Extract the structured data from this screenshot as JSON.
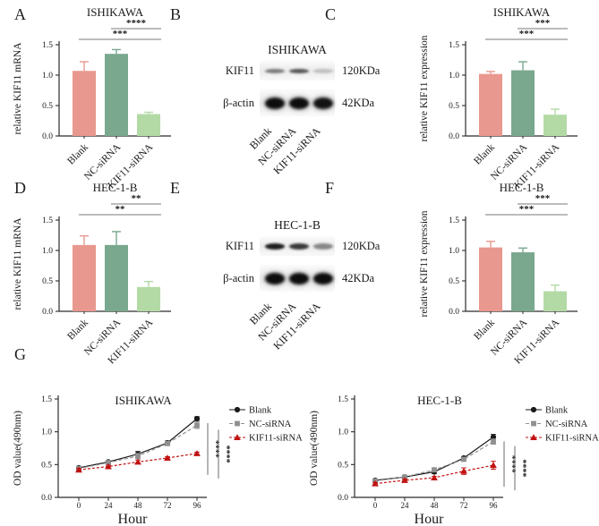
{
  "panel_letters": [
    "A",
    "B",
    "C",
    "D",
    "E",
    "F",
    "G"
  ],
  "groups": [
    "Blank",
    "NC-siRNA",
    "KIF11-siRNA"
  ],
  "colors": {
    "bar_blank": "#E8988E",
    "bar_nc": "#79A88E",
    "bar_kif11": "#B3DAA5",
    "line_blank": "#1A1A1A",
    "line_nc": "#909090",
    "line_kif11": "#C11212",
    "axis": "#2B2B2B",
    "sig_line": "#787878",
    "stars": "#111111"
  },
  "blots": {
    "B": {
      "title": "ISHIKAWA",
      "lanes": [
        "Blank",
        "NC-siRNA",
        "KIF11-siRNA"
      ],
      "rows": [
        {
          "protein": "KIF11",
          "size": "120KDa",
          "band_height": 5,
          "intensities": [
            0.5,
            0.68,
            0.2
          ]
        },
        {
          "protein": "β-actin",
          "size": "42KDa",
          "band_height": 13,
          "intensities": [
            1,
            1,
            0.97
          ]
        }
      ]
    },
    "E": {
      "title": "HEC-1-B",
      "lanes": [
        "Blank",
        "NC-siRNA",
        "KIF11-siRNA"
      ],
      "rows": [
        {
          "protein": "KIF11",
          "size": "120KDa",
          "band_height": 7,
          "intensities": [
            0.92,
            0.8,
            0.45
          ]
        },
        {
          "protein": "β-actin",
          "size": "42KDa",
          "band_height": 13,
          "intensities": [
            1,
            1,
            1
          ]
        }
      ]
    }
  },
  "chart_data": [
    {
      "id": "A",
      "type": "bar",
      "title": "ISHIKAWA",
      "ylabel": "relative KIF11 mRNA",
      "categories": [
        "Blank",
        "NC-siRNA",
        "KIF11-siRNA"
      ],
      "values": [
        1.07,
        1.35,
        0.36
      ],
      "errors": [
        0.15,
        0.07,
        0.03
      ],
      "ylim": [
        0,
        1.5
      ],
      "yticks": [
        0,
        0.5,
        1.0,
        1.5
      ],
      "significance": [
        {
          "from": 0,
          "to": 2,
          "stars": "***"
        },
        {
          "from": 1,
          "to": 2,
          "stars": "****"
        }
      ]
    },
    {
      "id": "C",
      "type": "bar",
      "title": "ISHIKAWA",
      "ylabel": "relative KIF11 expression",
      "categories": [
        "Blank",
        "NC-siRNA",
        "KIF11-siRNA"
      ],
      "values": [
        1.02,
        1.08,
        0.35
      ],
      "errors": [
        0.04,
        0.14,
        0.09
      ],
      "ylim": [
        0,
        1.5
      ],
      "yticks": [
        0,
        0.5,
        1.0,
        1.5
      ],
      "significance": [
        {
          "from": 0,
          "to": 2,
          "stars": "***"
        },
        {
          "from": 1,
          "to": 2,
          "stars": "***"
        }
      ]
    },
    {
      "id": "D",
      "type": "bar",
      "title": "HEC-1-B",
      "ylabel": "relative KIF11 mRNA",
      "categories": [
        "Blank",
        "NC-siRNA",
        "KIF11-siRNA"
      ],
      "values": [
        1.09,
        1.09,
        0.4
      ],
      "errors": [
        0.15,
        0.22,
        0.09
      ],
      "ylim": [
        0,
        1.5
      ],
      "yticks": [
        0,
        0.5,
        1.0,
        1.5
      ],
      "significance": [
        {
          "from": 0,
          "to": 2,
          "stars": "**"
        },
        {
          "from": 1,
          "to": 2,
          "stars": "**"
        }
      ]
    },
    {
      "id": "F",
      "type": "bar",
      "title": "HEC-1-B",
      "ylabel": "relative KIF11 expression",
      "categories": [
        "Blank",
        "NC-siRNA",
        "KIF11-siRNA"
      ],
      "values": [
        1.05,
        0.97,
        0.33
      ],
      "errors": [
        0.1,
        0.07,
        0.1
      ],
      "ylim": [
        0,
        1.5
      ],
      "yticks": [
        0,
        0.5,
        1.0,
        1.5
      ],
      "significance": [
        {
          "from": 0,
          "to": 2,
          "stars": "***"
        },
        {
          "from": 1,
          "to": 2,
          "stars": "***"
        }
      ]
    },
    {
      "id": "G1",
      "type": "line",
      "title": "ISHIKAWA",
      "ylabel": "OD value(490nm)",
      "xlabel": "Hour",
      "x": [
        0,
        24,
        48,
        72,
        96
      ],
      "ylim": [
        0,
        1.5
      ],
      "yticks": [
        0,
        0.5,
        1.0,
        1.5
      ],
      "series": [
        {
          "name": "Blank",
          "marker": "circle",
          "dash": "solid",
          "color": "#1A1A1A",
          "values": [
            0.45,
            0.54,
            0.66,
            0.83,
            1.2
          ],
          "errors": [
            0.02,
            0.02,
            0.04,
            0.03,
            0.03
          ]
        },
        {
          "name": "NC-siRNA",
          "marker": "square",
          "dash": "dashed",
          "color": "#909090",
          "values": [
            0.44,
            0.53,
            0.63,
            0.82,
            1.1
          ],
          "errors": [
            0.02,
            0.02,
            0.04,
            0.02,
            0.05
          ]
        },
        {
          "name": "KIF11-siRNA",
          "marker": "triangle",
          "dash": "dashed",
          "color": "#C11212",
          "values": [
            0.42,
            0.47,
            0.54,
            0.6,
            0.67
          ],
          "errors": [
            0.02,
            0.02,
            0.03,
            0.02,
            0.02
          ]
        }
      ],
      "significance": [
        {
          "stars": "****"
        },
        {
          "stars": "****"
        }
      ],
      "legend_position": "right"
    },
    {
      "id": "G2",
      "type": "line",
      "title": "HEC-1-B",
      "ylabel": "OD value(490nm)",
      "xlabel": "Hour",
      "x": [
        0,
        24,
        48,
        72,
        96
      ],
      "ylim": [
        0,
        1.5
      ],
      "yticks": [
        0,
        0.5,
        1.0,
        1.5
      ],
      "series": [
        {
          "name": "Blank",
          "marker": "circle",
          "dash": "solid",
          "color": "#1A1A1A",
          "values": [
            0.26,
            0.31,
            0.39,
            0.6,
            0.92
          ],
          "errors": [
            0.02,
            0.02,
            0.03,
            0.02,
            0.04
          ]
        },
        {
          "name": "NC-siRNA",
          "marker": "square",
          "dash": "dashed",
          "color": "#909090",
          "values": [
            0.25,
            0.31,
            0.42,
            0.58,
            0.85
          ],
          "errors": [
            0.02,
            0.02,
            0.03,
            0.02,
            0.04
          ]
        },
        {
          "name": "KIF11-siRNA",
          "marker": "triangle",
          "dash": "dashed",
          "color": "#C11212",
          "values": [
            0.21,
            0.26,
            0.3,
            0.4,
            0.49
          ],
          "errors": [
            0.02,
            0.02,
            0.02,
            0.05,
            0.06
          ]
        }
      ],
      "significance": [
        {
          "stars": "****"
        },
        {
          "stars": "****"
        }
      ],
      "legend_position": "right"
    }
  ]
}
